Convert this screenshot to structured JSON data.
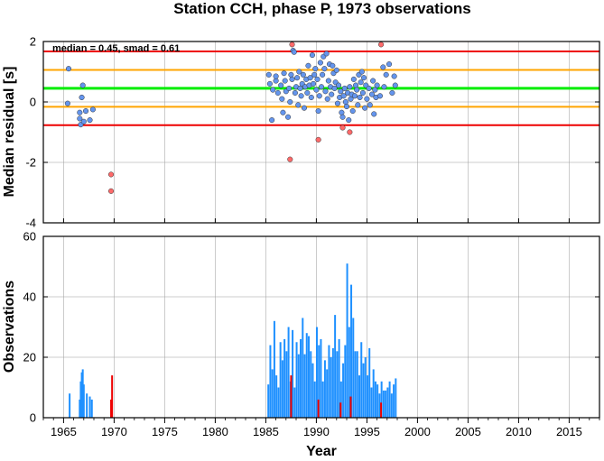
{
  "title": "Station CCH, phase P, 1973 observations",
  "colors": {
    "median_line": "#00ee00",
    "smad_lines": "#ffa500",
    "limit_lines": "#ee0000",
    "normal_points": "#6495ed",
    "outlier_points": "#ff6a6a",
    "normal_bars": "#1e90ff",
    "outlier_bars": "#ee0000",
    "grid": "#9a9a9a"
  },
  "chart_data": [
    {
      "type": "scatter",
      "name": "median-residual-panel",
      "ylabel": "Median residual [s]",
      "xlim": [
        1963,
        2018
      ],
      "ylim": [
        -4,
        2
      ],
      "xticks": [
        1965,
        1970,
        1975,
        1980,
        1985,
        1990,
        1995,
        2000,
        2005,
        2010,
        2015
      ],
      "yticks": [
        2,
        0,
        -2,
        -4
      ],
      "grid": true,
      "annotation": "median = 0.45, smad = 0.61",
      "reference_lines": [
        {
          "role": "median",
          "y": 0.45,
          "color": "#00ee00"
        },
        {
          "role": "median+smad",
          "y": 1.06,
          "color": "#ffa500"
        },
        {
          "role": "median-smad",
          "y": -0.16,
          "color": "#ffa500"
        },
        {
          "role": "upper-limit",
          "y": 1.67,
          "color": "#ee0000"
        },
        {
          "role": "lower-limit",
          "y": -0.77,
          "color": "#ee0000"
        }
      ],
      "series": [
        {
          "role": "within-limits",
          "color": "#6495ed",
          "points": [
            [
              1965.5,
              1.1
            ],
            [
              1965.4,
              -0.05
            ],
            [
              1966.6,
              -0.35
            ],
            [
              1966.6,
              -0.55
            ],
            [
              1966.7,
              -0.75
            ],
            [
              1966.8,
              0.15
            ],
            [
              1966.9,
              0.55
            ],
            [
              1967.0,
              -0.65
            ],
            [
              1967.2,
              -0.3
            ],
            [
              1967.6,
              -0.6
            ],
            [
              1967.9,
              -0.25
            ],
            [
              1985.3,
              0.9
            ],
            [
              1985.4,
              0.6
            ],
            [
              1985.6,
              -0.6
            ],
            [
              1985.7,
              0.4
            ],
            [
              1986.0,
              0.7
            ],
            [
              1986.0,
              0.85
            ],
            [
              1986.2,
              0.3
            ],
            [
              1986.5,
              0.55
            ],
            [
              1986.6,
              0.1
            ],
            [
              1986.7,
              -0.35
            ],
            [
              1986.8,
              0.95
            ],
            [
              1986.9,
              0.7
            ],
            [
              1987.0,
              0.35
            ],
            [
              1987.2,
              -0.5
            ],
            [
              1987.3,
              0.45
            ],
            [
              1987.4,
              0.0
            ],
            [
              1987.5,
              0.9
            ],
            [
              1987.6,
              0.75
            ],
            [
              1987.7,
              1.7
            ],
            [
              1987.8,
              1.65
            ],
            [
              1987.9,
              0.3
            ],
            [
              1988.0,
              0.5
            ],
            [
              1988.1,
              0.8
            ],
            [
              1988.2,
              -0.1
            ],
            [
              1988.3,
              1.0
            ],
            [
              1988.4,
              0.45
            ],
            [
              1988.5,
              0.2
            ],
            [
              1988.6,
              0.6
            ],
            [
              1988.7,
              0.9
            ],
            [
              1988.8,
              -0.2
            ],
            [
              1988.9,
              0.5
            ],
            [
              1989.0,
              0.75
            ],
            [
              1989.1,
              0.3
            ],
            [
              1989.2,
              1.2
            ],
            [
              1989.3,
              0.55
            ],
            [
              1989.4,
              0.8
            ],
            [
              1989.5,
              0.15
            ],
            [
              1989.6,
              1.55
            ],
            [
              1989.7,
              0.6
            ],
            [
              1989.8,
              0.9
            ],
            [
              1989.9,
              1.1
            ],
            [
              1990.0,
              0.4
            ],
            [
              1990.1,
              0.75
            ],
            [
              1990.2,
              -0.3
            ],
            [
              1990.3,
              0.2
            ],
            [
              1990.4,
              1.3
            ],
            [
              1990.5,
              0.5
            ],
            [
              1990.6,
              0.9
            ],
            [
              1990.7,
              1.5
            ],
            [
              1990.8,
              1.1
            ],
            [
              1990.9,
              0.35
            ],
            [
              1991.0,
              1.6
            ],
            [
              1991.1,
              0.1
            ],
            [
              1991.2,
              0.7
            ],
            [
              1991.3,
              1.25
            ],
            [
              1991.4,
              0.5
            ],
            [
              1991.5,
              0.25
            ],
            [
              1991.6,
              1.2
            ],
            [
              1991.7,
              0.95
            ],
            [
              1991.8,
              0.45
            ],
            [
              1991.9,
              0.65
            ],
            [
              1992.0,
              1.05
            ],
            [
              1992.1,
              -0.05
            ],
            [
              1992.2,
              0.55
            ],
            [
              1992.3,
              0.15
            ],
            [
              1992.4,
              0.35
            ],
            [
              1992.5,
              -0.35
            ],
            [
              1992.6,
              -0.5
            ],
            [
              1992.7,
              0.2
            ],
            [
              1992.8,
              0.45
            ],
            [
              1992.9,
              0.0
            ],
            [
              1993.0,
              -0.15
            ],
            [
              1993.1,
              0.3
            ],
            [
              1993.2,
              -0.6
            ],
            [
              1993.3,
              0.5
            ],
            [
              1993.4,
              0.1
            ],
            [
              1993.5,
              0.25
            ],
            [
              1993.6,
              -0.3
            ],
            [
              1993.7,
              0.75
            ],
            [
              1993.8,
              0.2
            ],
            [
              1993.9,
              0.55
            ],
            [
              1994.0,
              0.4
            ],
            [
              1994.1,
              -0.1
            ],
            [
              1994.2,
              0.9
            ],
            [
              1994.3,
              0.15
            ],
            [
              1994.4,
              0.65
            ],
            [
              1994.5,
              1.0
            ],
            [
              1994.6,
              0.3
            ],
            [
              1994.7,
              0.8
            ],
            [
              1994.8,
              -0.2
            ],
            [
              1994.9,
              0.55
            ],
            [
              1995.0,
              0.1
            ],
            [
              1995.2,
              0.45
            ],
            [
              1995.3,
              -0.1
            ],
            [
              1995.5,
              0.25
            ],
            [
              1995.6,
              0.7
            ],
            [
              1995.7,
              -0.4
            ],
            [
              1995.8,
              0.4
            ],
            [
              1995.9,
              0.15
            ],
            [
              1996.0,
              0.55
            ],
            [
              1996.3,
              0.2
            ],
            [
              1996.6,
              1.15
            ],
            [
              1996.7,
              0.5
            ],
            [
              1996.9,
              0.9
            ],
            [
              1997.2,
              1.25
            ],
            [
              1997.5,
              0.3
            ],
            [
              1997.7,
              0.85
            ],
            [
              1997.8,
              0.55
            ]
          ]
        },
        {
          "role": "outside-limits",
          "color": "#ff6a6a",
          "points": [
            [
              1969.7,
              -2.4
            ],
            [
              1969.7,
              -2.95
            ],
            [
              1987.4,
              -1.9
            ],
            [
              1987.6,
              1.9
            ],
            [
              1990.2,
              -1.25
            ],
            [
              1992.6,
              -0.85
            ],
            [
              1993.3,
              -1.0
            ],
            [
              1996.4,
              1.9
            ]
          ]
        }
      ]
    },
    {
      "type": "bar",
      "name": "observations-panel",
      "xlabel": "Year",
      "ylabel": "Observations",
      "xlim": [
        1963,
        2018
      ],
      "ylim": [
        0,
        60
      ],
      "xticks": [
        1965,
        1970,
        1975,
        1980,
        1985,
        1990,
        1995,
        2000,
        2005,
        2010,
        2015
      ],
      "yticks": [
        60,
        40,
        20,
        0
      ],
      "grid": true,
      "series": [
        {
          "role": "observations",
          "color": "#1e90ff",
          "x": [
            1965.6,
            1966.6,
            1966.7,
            1966.8,
            1966.9,
            1967.0,
            1967.3,
            1967.6,
            1967.8,
            1985.25,
            1985.45,
            1985.65,
            1985.85,
            1986.05,
            1986.25,
            1986.45,
            1986.65,
            1986.85,
            1987.05,
            1987.25,
            1987.45,
            1987.65,
            1987.85,
            1988.05,
            1988.25,
            1988.45,
            1988.65,
            1988.85,
            1989.05,
            1989.25,
            1989.45,
            1989.65,
            1989.85,
            1990.05,
            1990.25,
            1990.45,
            1990.65,
            1990.85,
            1991.05,
            1991.25,
            1991.45,
            1991.65,
            1991.85,
            1992.05,
            1992.25,
            1992.45,
            1992.65,
            1992.85,
            1993.05,
            1993.25,
            1993.45,
            1993.65,
            1993.85,
            1994.05,
            1994.25,
            1994.45,
            1994.65,
            1994.85,
            1995.05,
            1995.25,
            1995.45,
            1995.65,
            1995.85,
            1996.05,
            1996.25,
            1996.45,
            1996.65,
            1996.85,
            1997.05,
            1997.25,
            1997.45,
            1997.65,
            1997.85
          ],
          "values": [
            8,
            6,
            12,
            15,
            16,
            11,
            8,
            7,
            6,
            11,
            24,
            16,
            32,
            14,
            10,
            25,
            19,
            26,
            22,
            30,
            12,
            29,
            10,
            25,
            21,
            26,
            33,
            21,
            28,
            27,
            22,
            18,
            12,
            30,
            24,
            26,
            12,
            19,
            16,
            24,
            20,
            23,
            34,
            22,
            26,
            12,
            18,
            24,
            51,
            30,
            44,
            33,
            22,
            22,
            14,
            25,
            18,
            20,
            14,
            23,
            10,
            16,
            12,
            11,
            8,
            12,
            9,
            9,
            10,
            12,
            8,
            11,
            13
          ]
        },
        {
          "role": "outside-limits",
          "color": "#ee0000",
          "x": [
            1969.7,
            1969.8,
            1987.5,
            1990.2,
            1992.4,
            1993.4,
            1996.4
          ],
          "values": [
            6,
            14,
            14,
            6,
            5,
            7,
            5
          ]
        }
      ]
    }
  ]
}
